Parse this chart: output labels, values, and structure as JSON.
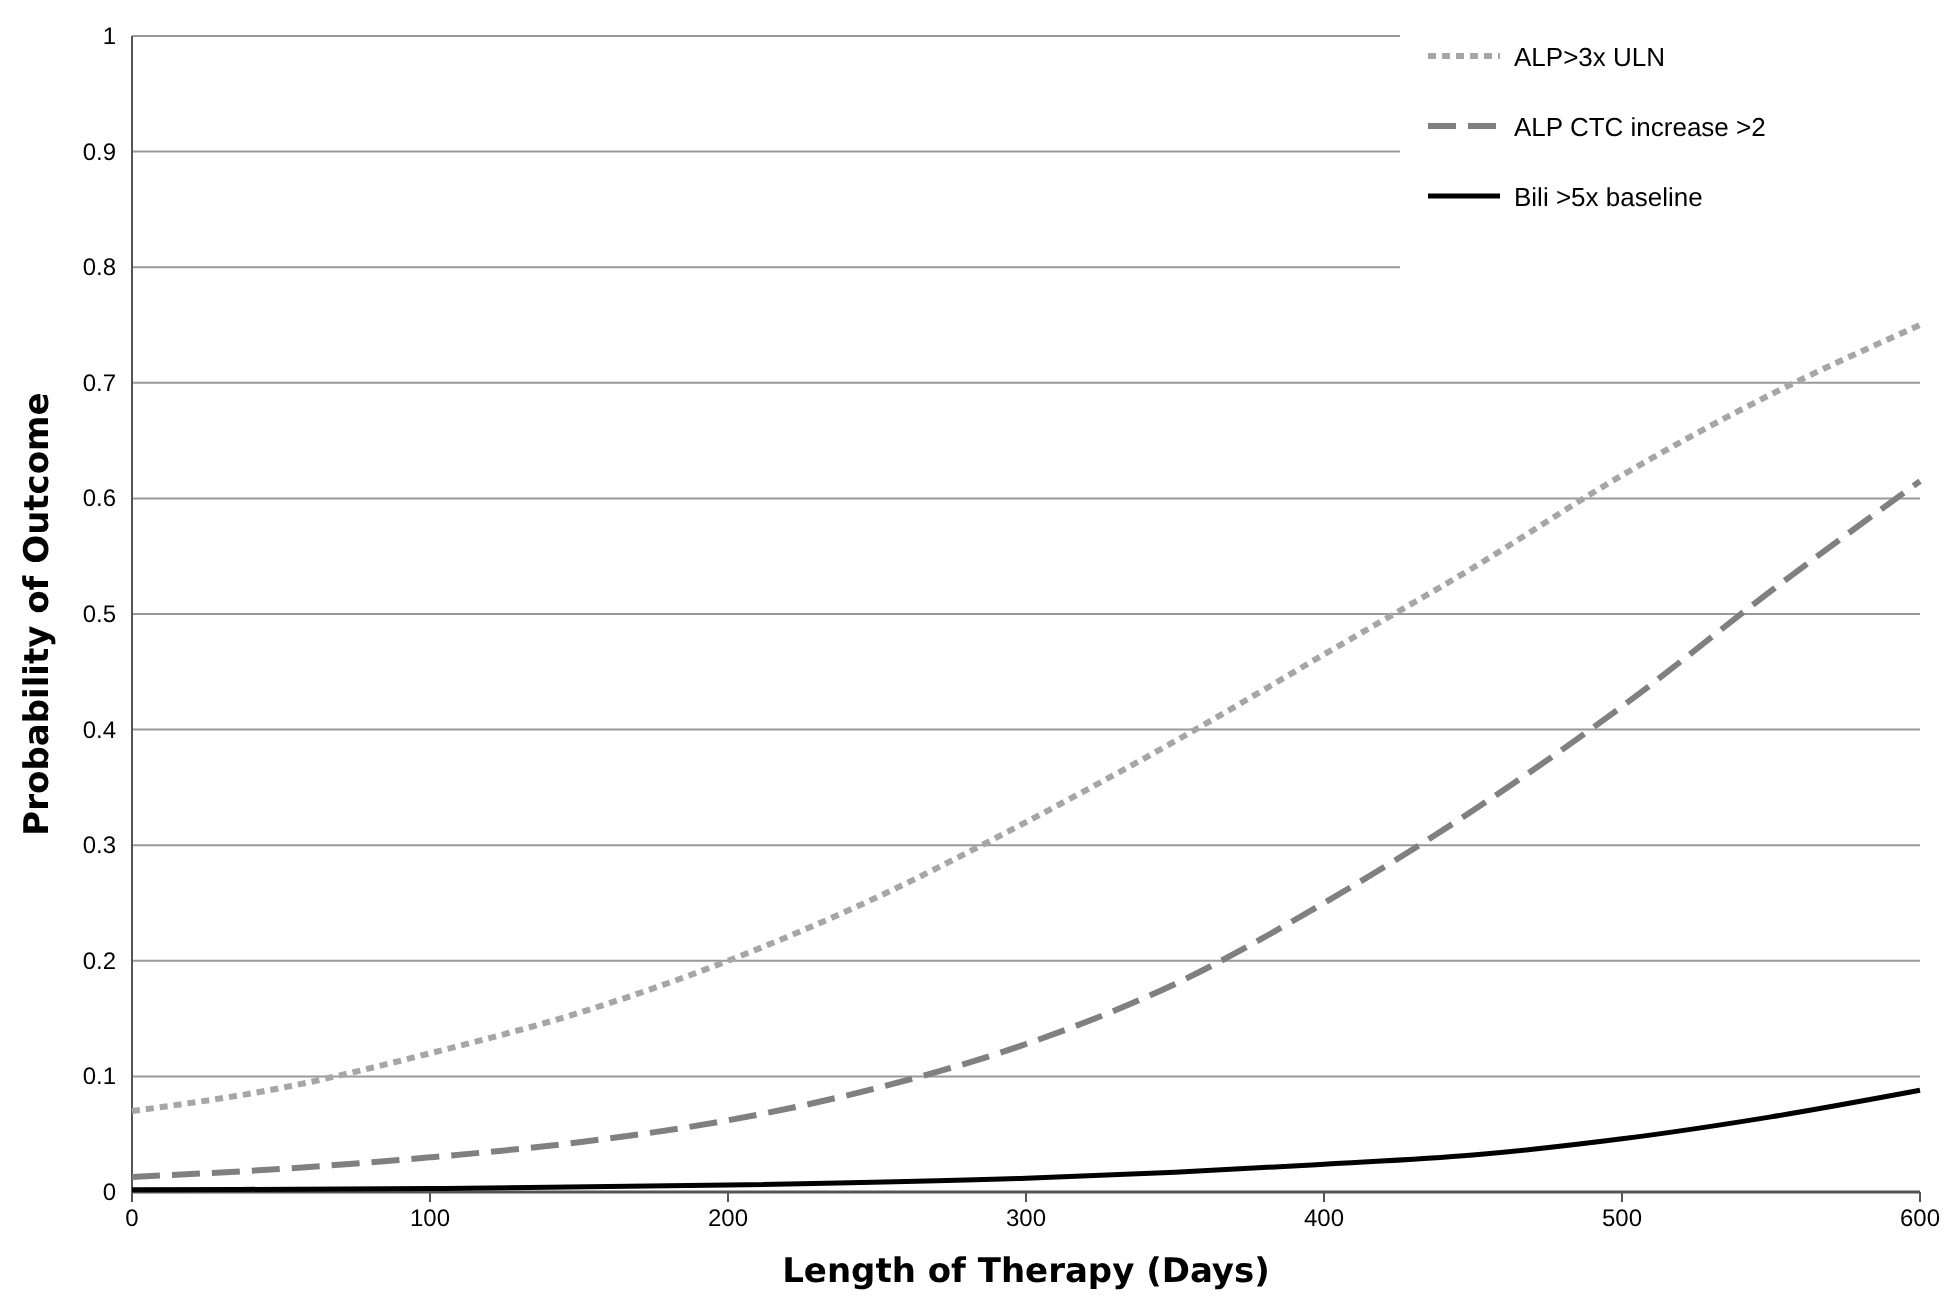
{
  "chart_data": {
    "type": "line",
    "xlabel": "Length of Therapy (Days)",
    "ylabel": "Probability of Outcome",
    "xlim": [
      0,
      600
    ],
    "xticks": [
      0,
      100,
      200,
      300,
      400,
      500,
      600
    ],
    "ylim": [
      0,
      1
    ],
    "yticks": [
      0,
      0.1,
      0.2,
      0.3,
      0.4,
      0.5,
      0.6,
      0.7,
      0.8,
      0.9,
      1
    ],
    "grid": "y",
    "legend": "top right",
    "marker": "none",
    "series": [
      {
        "name": "ALP>3x ULN",
        "color": "#a6a6a6",
        "line_style": "dotted",
        "x": [
          0,
          50,
          100,
          150,
          200,
          250,
          300,
          350,
          400,
          450,
          500,
          550,
          600
        ],
        "values": [
          0.07,
          0.09,
          0.12,
          0.155,
          0.2,
          0.255,
          0.32,
          0.39,
          0.465,
          0.54,
          0.62,
          0.69,
          0.75
        ]
      },
      {
        "name": "ALP CTC increase >2",
        "color": "#808080",
        "line_style": "dashed",
        "x": [
          0,
          50,
          100,
          150,
          200,
          250,
          300,
          350,
          400,
          450,
          500,
          550,
          600
        ],
        "values": [
          0.013,
          0.02,
          0.03,
          0.043,
          0.062,
          0.09,
          0.128,
          0.18,
          0.25,
          0.33,
          0.42,
          0.52,
          0.615
        ]
      },
      {
        "name": "Bili >5x baseline",
        "color": "#000000",
        "line_style": "solid",
        "x": [
          0,
          100,
          200,
          300,
          350,
          400,
          450,
          500,
          550,
          600
        ],
        "values": [
          0.002,
          0.003,
          0.006,
          0.012,
          0.017,
          0.024,
          0.032,
          0.046,
          0.065,
          0.088
        ]
      }
    ]
  }
}
